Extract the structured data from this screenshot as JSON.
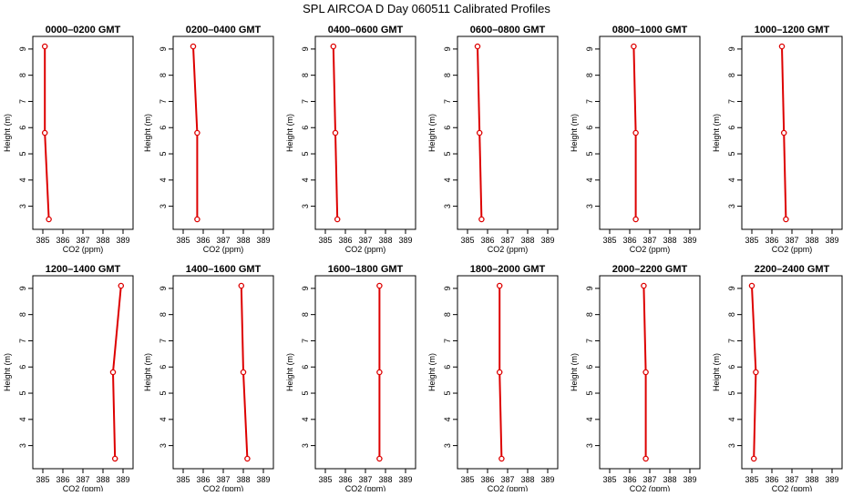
{
  "figure": {
    "title": "SPL AIRCOA D  Day 060511  Calibrated Profiles"
  },
  "colors": {
    "line": "#dd0000",
    "axis": "#000000"
  },
  "chart_data": [
    {
      "type": "line",
      "title": "0000–0200 GMT",
      "xlabel": "CO2 (ppm)",
      "ylabel": "Height (m)",
      "xlim": [
        385,
        389
      ],
      "ylim": [
        2.5,
        9.1
      ],
      "xticks": [
        385,
        386,
        387,
        388,
        389
      ],
      "yticks": [
        3,
        4,
        5,
        6,
        7,
        8,
        9
      ],
      "grid": false,
      "x": [
        385.3,
        385.1,
        385.1
      ],
      "y": [
        2.5,
        5.8,
        9.1
      ]
    },
    {
      "type": "line",
      "title": "0200–0400 GMT",
      "xlabel": "CO2 (ppm)",
      "ylabel": "Height (m)",
      "xlim": [
        385,
        389
      ],
      "ylim": [
        2.5,
        9.1
      ],
      "xticks": [
        385,
        386,
        387,
        388,
        389
      ],
      "yticks": [
        3,
        4,
        5,
        6,
        7,
        8,
        9
      ],
      "grid": false,
      "x": [
        385.7,
        385.7,
        385.5
      ],
      "y": [
        2.5,
        5.8,
        9.1
      ]
    },
    {
      "type": "line",
      "title": "0400–0600 GMT",
      "xlabel": "CO2 (ppm)",
      "ylabel": "Height (m)",
      "xlim": [
        385,
        389
      ],
      "ylim": [
        2.5,
        9.1
      ],
      "xticks": [
        385,
        386,
        387,
        388,
        389
      ],
      "yticks": [
        3,
        4,
        5,
        6,
        7,
        8,
        9
      ],
      "grid": false,
      "x": [
        385.6,
        385.5,
        385.4
      ],
      "y": [
        2.5,
        5.8,
        9.1
      ]
    },
    {
      "type": "line",
      "title": "0600–0800 GMT",
      "xlabel": "CO2 (ppm)",
      "ylabel": "Height (m)",
      "xlim": [
        385,
        389
      ],
      "ylim": [
        2.5,
        9.1
      ],
      "xticks": [
        385,
        386,
        387,
        388,
        389
      ],
      "yticks": [
        3,
        4,
        5,
        6,
        7,
        8,
        9
      ],
      "grid": false,
      "x": [
        385.7,
        385.6,
        385.5
      ],
      "y": [
        2.5,
        5.8,
        9.1
      ]
    },
    {
      "type": "line",
      "title": "0800–1000 GMT",
      "xlabel": "CO2 (ppm)",
      "ylabel": "Height (m)",
      "xlim": [
        385,
        389
      ],
      "ylim": [
        2.5,
        9.1
      ],
      "xticks": [
        385,
        386,
        387,
        388,
        389
      ],
      "yticks": [
        3,
        4,
        5,
        6,
        7,
        8,
        9
      ],
      "grid": false,
      "x": [
        386.3,
        386.3,
        386.2
      ],
      "y": [
        2.5,
        5.8,
        9.1
      ]
    },
    {
      "type": "line",
      "title": "1000–1200 GMT",
      "xlabel": "CO2 (ppm)",
      "ylabel": "Height (m)",
      "xlim": [
        385,
        389
      ],
      "ylim": [
        2.5,
        9.1
      ],
      "xticks": [
        385,
        386,
        387,
        388,
        389
      ],
      "yticks": [
        3,
        4,
        5,
        6,
        7,
        8,
        9
      ],
      "grid": false,
      "x": [
        386.7,
        386.6,
        386.5
      ],
      "y": [
        2.5,
        5.8,
        9.1
      ]
    },
    {
      "type": "line",
      "title": "1200–1400 GMT",
      "xlabel": "CO2 (ppm)",
      "ylabel": "Height (m)",
      "xlim": [
        385,
        389
      ],
      "ylim": [
        2.5,
        9.1
      ],
      "xticks": [
        385,
        386,
        387,
        388,
        389
      ],
      "yticks": [
        3,
        4,
        5,
        6,
        7,
        8,
        9
      ],
      "grid": false,
      "x": [
        388.6,
        388.5,
        388.9
      ],
      "y": [
        2.5,
        5.8,
        9.1
      ]
    },
    {
      "type": "line",
      "title": "1400–1600 GMT",
      "xlabel": "CO2 (ppm)",
      "ylabel": "Height (m)",
      "xlim": [
        385,
        389
      ],
      "ylim": [
        2.5,
        9.1
      ],
      "xticks": [
        385,
        386,
        387,
        388,
        389
      ],
      "yticks": [
        3,
        4,
        5,
        6,
        7,
        8,
        9
      ],
      "grid": false,
      "x": [
        388.2,
        388.0,
        387.9
      ],
      "y": [
        2.5,
        5.8,
        9.1
      ]
    },
    {
      "type": "line",
      "title": "1600–1800 GMT",
      "xlabel": "CO2 (ppm)",
      "ylabel": "Height (m)",
      "xlim": [
        385,
        389
      ],
      "ylim": [
        2.5,
        9.1
      ],
      "xticks": [
        385,
        386,
        387,
        388,
        389
      ],
      "yticks": [
        3,
        4,
        5,
        6,
        7,
        8,
        9
      ],
      "grid": false,
      "x": [
        387.7,
        387.7,
        387.7
      ],
      "y": [
        2.5,
        5.8,
        9.1
      ]
    },
    {
      "type": "line",
      "title": "1800–2000 GMT",
      "xlabel": "CO2 (ppm)",
      "ylabel": "Height (m)",
      "xlim": [
        385,
        389
      ],
      "ylim": [
        2.5,
        9.1
      ],
      "xticks": [
        385,
        386,
        387,
        388,
        389
      ],
      "yticks": [
        3,
        4,
        5,
        6,
        7,
        8,
        9
      ],
      "grid": false,
      "x": [
        386.7,
        386.6,
        386.6
      ],
      "y": [
        2.5,
        5.8,
        9.1
      ]
    },
    {
      "type": "line",
      "title": "2000–2200 GMT",
      "xlabel": "CO2 (ppm)",
      "ylabel": "Height (m)",
      "xlim": [
        385,
        389
      ],
      "ylim": [
        2.5,
        9.1
      ],
      "xticks": [
        385,
        386,
        387,
        388,
        389
      ],
      "yticks": [
        3,
        4,
        5,
        6,
        7,
        8,
        9
      ],
      "grid": false,
      "x": [
        386.8,
        386.8,
        386.7
      ],
      "y": [
        2.5,
        5.8,
        9.1
      ]
    },
    {
      "type": "line",
      "title": "2200–2400 GMT",
      "xlabel": "CO2 (ppm)",
      "ylabel": "Height (m)",
      "xlim": [
        385,
        389
      ],
      "ylim": [
        2.5,
        9.1
      ],
      "xticks": [
        385,
        386,
        387,
        388,
        389
      ],
      "yticks": [
        3,
        4,
        5,
        6,
        7,
        8,
        9
      ],
      "grid": false,
      "x": [
        385.1,
        385.2,
        385.0
      ],
      "y": [
        2.5,
        5.8,
        9.1
      ]
    }
  ]
}
